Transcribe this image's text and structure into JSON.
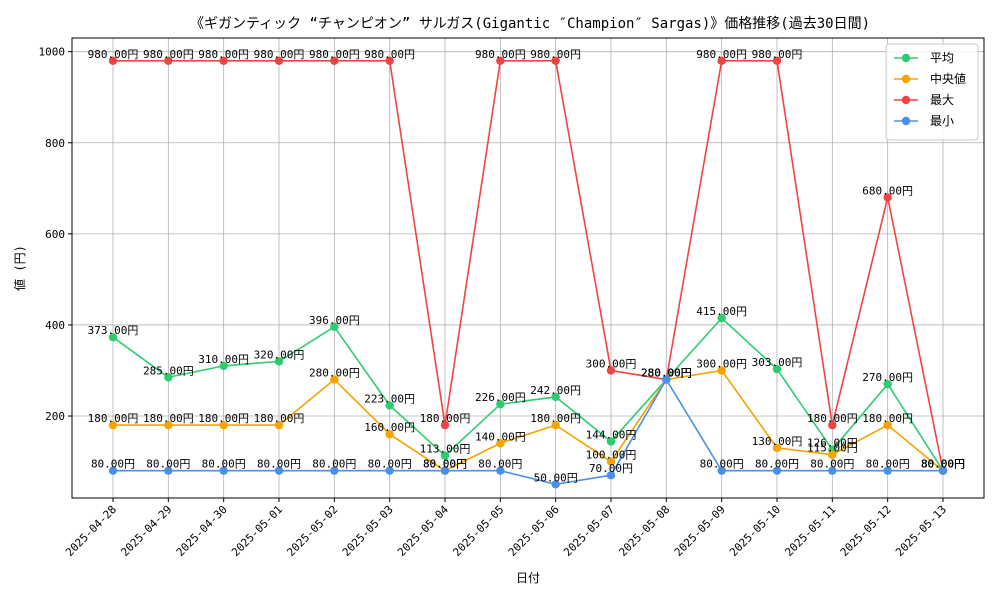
{
  "chart_data": {
    "type": "line",
    "title": "《ギガンティック “チャンピオン” サルガス(Gigantic ″Champion″ Sargas)》価格推移(過去30日間)",
    "xlabel": "日付",
    "ylabel": "値 (円)",
    "ylim": [
      20,
      1030
    ],
    "yticks": [
      200,
      400,
      600,
      800,
      1000
    ],
    "grid": true,
    "legend_position": "top-right",
    "value_suffix": "円",
    "categories": [
      "2025-04-28",
      "2025-04-29",
      "2025-04-30",
      "2025-05-01",
      "2025-05-02",
      "2025-05-03",
      "2025-05-04",
      "2025-05-05",
      "2025-05-06",
      "2025-05-07",
      "2025-05-08",
      "2025-05-09",
      "2025-05-10",
      "2025-05-11",
      "2025-05-12",
      "2025-05-13"
    ],
    "series": [
      {
        "name": "平均",
        "color": "#2ecc71",
        "values": [
          373,
          285,
          310,
          320,
          396,
          223,
          113,
          226,
          242,
          144,
          280,
          415,
          303,
          126,
          270,
          80
        ]
      },
      {
        "name": "中央値",
        "color": "#f5a300",
        "values": [
          180,
          180,
          180,
          180,
          280,
          160,
          80,
          140,
          180,
          100,
          280,
          300,
          130,
          115,
          180,
          80
        ]
      },
      {
        "name": "最大",
        "color": "#ef4444",
        "values": [
          980,
          980,
          980,
          980,
          980,
          980,
          180,
          980,
          980,
          300,
          280,
          980,
          980,
          180,
          680,
          80
        ]
      },
      {
        "name": "最小",
        "color": "#4a90e8",
        "values": [
          80,
          80,
          80,
          80,
          80,
          80,
          80,
          80,
          50,
          70,
          280,
          80,
          80,
          80,
          80,
          80
        ]
      }
    ]
  }
}
